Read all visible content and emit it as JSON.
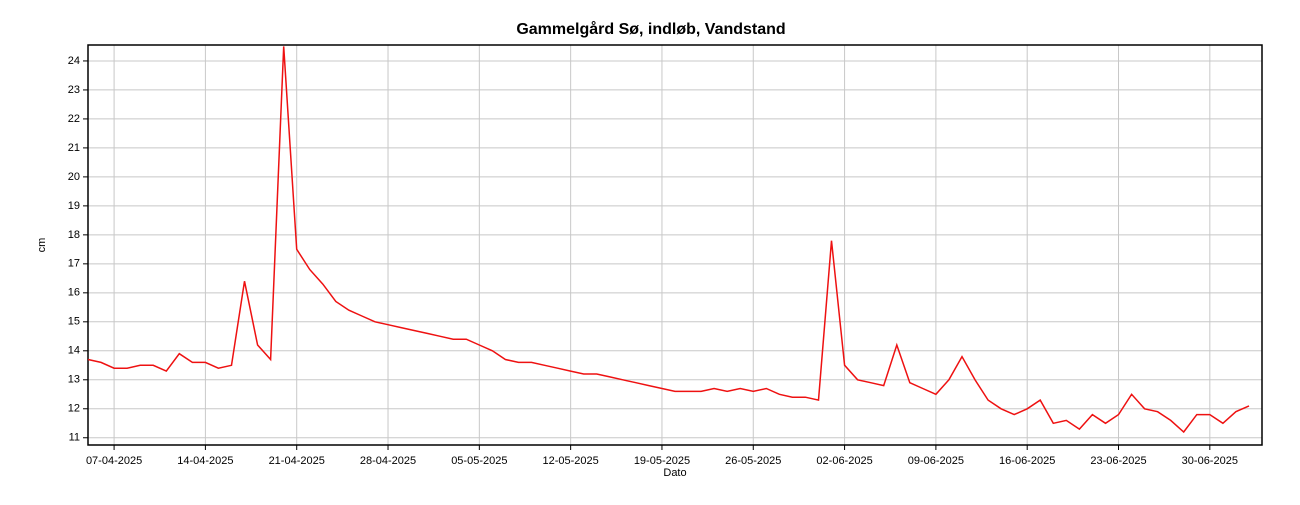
{
  "chart_data": {
    "type": "line",
    "title": "Gammelgård Sø, indløb, Vandstand",
    "x_label": "Dato",
    "y_label": "cm",
    "x": [
      "2025-04-05",
      "2025-04-06",
      "2025-04-07",
      "2025-04-08",
      "2025-04-09",
      "2025-04-10",
      "2025-04-11",
      "2025-04-12",
      "2025-04-13",
      "2025-04-14",
      "2025-04-15",
      "2025-04-16",
      "2025-04-17",
      "2025-04-18",
      "2025-04-19",
      "2025-04-20",
      "2025-04-21",
      "2025-04-22",
      "2025-04-23",
      "2025-04-24",
      "2025-04-25",
      "2025-04-26",
      "2025-04-27",
      "2025-04-28",
      "2025-04-29",
      "2025-04-30",
      "2025-05-01",
      "2025-05-02",
      "2025-05-03",
      "2025-05-04",
      "2025-05-05",
      "2025-05-06",
      "2025-05-07",
      "2025-05-08",
      "2025-05-09",
      "2025-05-10",
      "2025-05-11",
      "2025-05-12",
      "2025-05-13",
      "2025-05-14",
      "2025-05-15",
      "2025-05-16",
      "2025-05-17",
      "2025-05-18",
      "2025-05-19",
      "2025-05-20",
      "2025-05-21",
      "2025-05-22",
      "2025-05-23",
      "2025-05-24",
      "2025-05-25",
      "2025-05-26",
      "2025-05-27",
      "2025-05-28",
      "2025-05-29",
      "2025-05-30",
      "2025-05-31",
      "2025-06-01",
      "2025-06-02",
      "2025-06-03",
      "2025-06-04",
      "2025-06-05",
      "2025-06-06",
      "2025-06-07",
      "2025-06-08",
      "2025-06-09",
      "2025-06-10",
      "2025-06-11",
      "2025-06-12",
      "2025-06-13",
      "2025-06-14",
      "2025-06-15",
      "2025-06-16",
      "2025-06-17",
      "2025-06-18",
      "2025-06-19",
      "2025-06-20",
      "2025-06-21",
      "2025-06-22",
      "2025-06-23",
      "2025-06-24",
      "2025-06-25",
      "2025-06-26",
      "2025-06-27",
      "2025-06-28",
      "2025-06-29",
      "2025-06-30",
      "2025-07-01",
      "2025-07-02",
      "2025-07-03"
    ],
    "series": [
      {
        "name": "Vandstand",
        "color": "#ee1111",
        "values": [
          13.7,
          13.6,
          13.4,
          13.4,
          13.5,
          13.5,
          13.3,
          13.9,
          13.6,
          13.6,
          13.4,
          13.5,
          16.4,
          14.2,
          13.7,
          24.5,
          17.5,
          16.8,
          16.3,
          15.7,
          15.4,
          15.2,
          15.0,
          14.9,
          14.8,
          14.7,
          14.6,
          14.5,
          14.4,
          14.4,
          14.2,
          14.0,
          13.7,
          13.6,
          13.6,
          13.5,
          13.4,
          13.3,
          13.2,
          13.2,
          13.1,
          13.0,
          12.9,
          12.8,
          12.7,
          12.6,
          12.6,
          12.6,
          12.7,
          12.6,
          12.7,
          12.6,
          12.7,
          12.5,
          12.4,
          12.4,
          12.3,
          17.8,
          13.5,
          13.0,
          12.9,
          12.8,
          14.2,
          12.9,
          12.7,
          12.5,
          13.0,
          13.8,
          13.0,
          12.3,
          12.0,
          11.8,
          12.0,
          12.3,
          11.5,
          11.6,
          11.3,
          11.8,
          11.5,
          11.8,
          12.5,
          12.0,
          11.9,
          11.6,
          11.2,
          11.8,
          11.8,
          11.5,
          11.9,
          12.1
        ]
      }
    ],
    "xlim": [
      "2025-04-05",
      "2025-07-04"
    ],
    "xticks": [
      {
        "value": "2025-04-07",
        "label": "07-04-2025"
      },
      {
        "value": "2025-04-14",
        "label": "14-04-2025"
      },
      {
        "value": "2025-04-21",
        "label": "21-04-2025"
      },
      {
        "value": "2025-04-28",
        "label": "28-04-2025"
      },
      {
        "value": "2025-05-05",
        "label": "05-05-2025"
      },
      {
        "value": "2025-05-12",
        "label": "12-05-2025"
      },
      {
        "value": "2025-05-19",
        "label": "19-05-2025"
      },
      {
        "value": "2025-05-26",
        "label": "26-05-2025"
      },
      {
        "value": "2025-06-02",
        "label": "02-06-2025"
      },
      {
        "value": "2025-06-09",
        "label": "09-06-2025"
      },
      {
        "value": "2025-06-16",
        "label": "16-06-2025"
      },
      {
        "value": "2025-06-23",
        "label": "23-06-2025"
      },
      {
        "value": "2025-06-30",
        "label": "30-06-2025"
      }
    ],
    "ylim": [
      10.75,
      24.55
    ],
    "yticks": [
      11,
      12,
      13,
      14,
      15,
      16,
      17,
      18,
      19,
      20,
      21,
      22,
      23,
      24
    ],
    "grid": true
  }
}
